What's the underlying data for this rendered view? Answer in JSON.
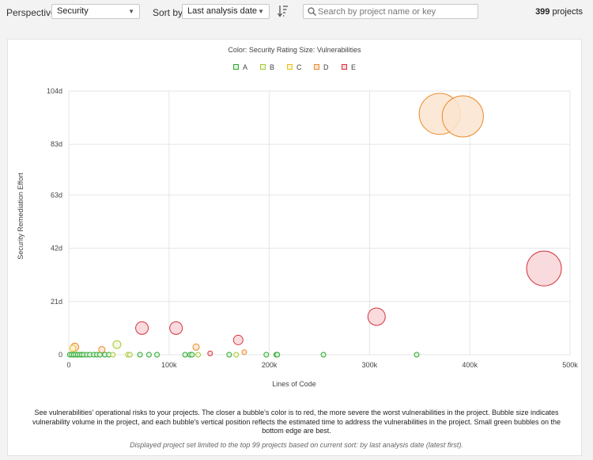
{
  "toolbar": {
    "perspective_label": "Perspective:",
    "perspective_value": "Security",
    "sort_label": "Sort by:",
    "sort_value": "Last analysis date",
    "search_placeholder": "Search by project name or key",
    "project_count": "399",
    "project_count_suffix": " projects"
  },
  "chart_title": "Color: Security Rating  Size: Vulnerabilities",
  "legend": [
    {
      "label": "A",
      "color": "#2fa82f",
      "fill": "#dff3df"
    },
    {
      "label": "B",
      "color": "#a7c83a",
      "fill": "#f1f7da"
    },
    {
      "label": "C",
      "color": "#e6c01f",
      "fill": "#fcf3d2"
    },
    {
      "label": "D",
      "color": "#e88a2a",
      "fill": "#fbe4cf"
    },
    {
      "label": "E",
      "color": "#d4333f",
      "fill": "#f8d5d8"
    }
  ],
  "chart_data": {
    "type": "scatter",
    "xlabel": "Lines of Code",
    "ylabel": "Security Remediation Effort",
    "x_ticks": [
      "0",
      "100k",
      "200k",
      "300k",
      "400k",
      "500k"
    ],
    "x_tick_values": [
      0,
      100000,
      200000,
      300000,
      400000,
      500000
    ],
    "y_ticks": [
      "0",
      "21d",
      "42d",
      "63d",
      "83d",
      "104d"
    ],
    "y_tick_values": [
      0,
      21,
      42,
      63,
      83,
      104
    ],
    "xlim": [
      0,
      500000
    ],
    "ylim": [
      0,
      104
    ],
    "grid": true,
    "points": [
      {
        "x": 370000,
        "y": 95,
        "r": 26,
        "rating": "D"
      },
      {
        "x": 393000,
        "y": 94,
        "r": 26,
        "rating": "D"
      },
      {
        "x": 474000,
        "y": 34,
        "r": 22,
        "rating": "E"
      },
      {
        "x": 307000,
        "y": 15,
        "r": 11,
        "rating": "E"
      },
      {
        "x": 107000,
        "y": 10.5,
        "r": 8,
        "rating": "E"
      },
      {
        "x": 73000,
        "y": 10.5,
        "r": 8,
        "rating": "E"
      },
      {
        "x": 169000,
        "y": 5.8,
        "r": 6,
        "rating": "E"
      },
      {
        "x": 48000,
        "y": 4,
        "r": 5,
        "rating": "B"
      },
      {
        "x": 127000,
        "y": 3,
        "r": 4,
        "rating": "D"
      },
      {
        "x": 6000,
        "y": 3,
        "r": 5,
        "rating": "D"
      },
      {
        "x": 4000,
        "y": 2.5,
        "r": 4,
        "rating": "C"
      },
      {
        "x": 33000,
        "y": 2,
        "r": 4,
        "rating": "D"
      },
      {
        "x": 175000,
        "y": 1,
        "r": 3,
        "rating": "D"
      },
      {
        "x": 141000,
        "y": 0.5,
        "r": 3,
        "rating": "E"
      },
      {
        "x": 1000,
        "y": 0,
        "r": 3,
        "rating": "A"
      },
      {
        "x": 3000,
        "y": 0,
        "r": 3,
        "rating": "A"
      },
      {
        "x": 5000,
        "y": 0,
        "r": 3,
        "rating": "A"
      },
      {
        "x": 7000,
        "y": 0,
        "r": 3,
        "rating": "A"
      },
      {
        "x": 9000,
        "y": 0,
        "r": 3,
        "rating": "A"
      },
      {
        "x": 11000,
        "y": 0,
        "r": 3,
        "rating": "A"
      },
      {
        "x": 13000,
        "y": 0,
        "r": 3,
        "rating": "A"
      },
      {
        "x": 15000,
        "y": 0,
        "r": 3,
        "rating": "A"
      },
      {
        "x": 18000,
        "y": 0,
        "r": 3,
        "rating": "A"
      },
      {
        "x": 21000,
        "y": 0,
        "r": 3,
        "rating": "A"
      },
      {
        "x": 25000,
        "y": 0,
        "r": 3,
        "rating": "A"
      },
      {
        "x": 28000,
        "y": 0,
        "r": 3,
        "rating": "A"
      },
      {
        "x": 31000,
        "y": 0,
        "r": 3,
        "rating": "A"
      },
      {
        "x": 36000,
        "y": 0,
        "r": 3,
        "rating": "A"
      },
      {
        "x": 40000,
        "y": 0,
        "r": 3,
        "rating": "A"
      },
      {
        "x": 44000,
        "y": 0,
        "r": 3,
        "rating": "B"
      },
      {
        "x": 59000,
        "y": 0,
        "r": 3,
        "rating": "B"
      },
      {
        "x": 61000,
        "y": 0,
        "r": 3,
        "rating": "B"
      },
      {
        "x": 71000,
        "y": 0,
        "r": 3,
        "rating": "A"
      },
      {
        "x": 80000,
        "y": 0,
        "r": 3,
        "rating": "A"
      },
      {
        "x": 88000,
        "y": 0,
        "r": 3,
        "rating": "A"
      },
      {
        "x": 116000,
        "y": 0,
        "r": 3,
        "rating": "A"
      },
      {
        "x": 121000,
        "y": 0,
        "r": 3,
        "rating": "A"
      },
      {
        "x": 123000,
        "y": 0,
        "r": 3,
        "rating": "A"
      },
      {
        "x": 129000,
        "y": 0,
        "r": 3,
        "rating": "B"
      },
      {
        "x": 160000,
        "y": 0,
        "r": 3,
        "rating": "A"
      },
      {
        "x": 167000,
        "y": 0,
        "r": 3,
        "rating": "B"
      },
      {
        "x": 197000,
        "y": 0,
        "r": 3,
        "rating": "A"
      },
      {
        "x": 207000,
        "y": 0,
        "r": 3,
        "rating": "A"
      },
      {
        "x": 208000,
        "y": 0,
        "r": 3,
        "rating": "A"
      },
      {
        "x": 254000,
        "y": 0,
        "r": 3,
        "rating": "A"
      },
      {
        "x": 347000,
        "y": 0,
        "r": 3,
        "rating": "A"
      }
    ]
  },
  "description": "See vulnerabilities' operational risks to your projects. The closer a bubble's color is to red, the more severe the worst vulnerabilities in the project. Bubble size indicates vulnerability volume in the project, and each bubble's vertical position reflects the estimated time to address the vulnerabilities in the project. Small green bubbles on the bottom edge are best.",
  "note": "Displayed project set limited to the top 99 projects based on current sort: by last analysis date (latest first)."
}
